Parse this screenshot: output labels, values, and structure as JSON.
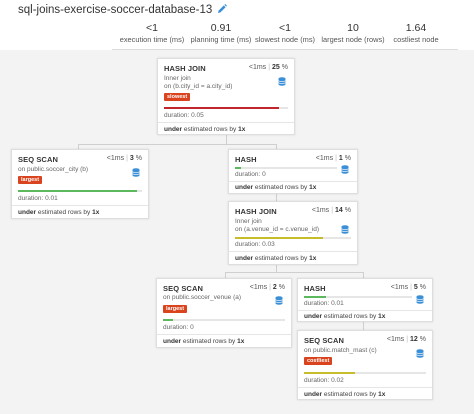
{
  "title": "sql-joins-exercise-soccer-database-13",
  "colors": {
    "red": "#c0262c",
    "green": "#5cb85c",
    "yellow": "#c7bd2b",
    "badge": "#d9431e",
    "db": "#3a8fd6"
  },
  "stats": [
    {
      "value": "<1",
      "label": "execution time (ms)"
    },
    {
      "value": "0.91",
      "label": "planning time (ms)"
    },
    {
      "value": "<1",
      "label": "slowest node (ms)"
    },
    {
      "value": "10",
      "label": "largest node (rows)"
    },
    {
      "value": "1.64",
      "label": "costliest node"
    }
  ],
  "nodes": {
    "hash_join_top": {
      "title": "HASH JOIN",
      "time": "<1ms",
      "pct": "25",
      "pct_unit": "%",
      "line1": "Inner join",
      "line2": "on (b.city_id = a.city_id)",
      "badge": "slowest",
      "duration_label": "duration:",
      "duration": "0.05",
      "bar_fraction": 0.93,
      "est_prefix": "under",
      "est_text": "estimated rows by",
      "est_factor": "1x"
    },
    "seq_scan_city": {
      "title": "SEQ SCAN",
      "time": "<1ms",
      "pct": "3",
      "pct_unit": "%",
      "line1": "on public.soccer_city (b)",
      "badge": "largest",
      "duration_label": "duration:",
      "duration": "0.01",
      "bar_fraction": 0.96,
      "est_prefix": "under",
      "est_text": "estimated rows by",
      "est_factor": "1x"
    },
    "hash_1": {
      "title": "HASH",
      "time": "<1ms",
      "pct": "1",
      "pct_unit": "%",
      "duration_label": "duration:",
      "duration": "0",
      "bar_fraction": 0.06,
      "est_prefix": "under",
      "est_text": "estimated rows by",
      "est_factor": "1x"
    },
    "hash_join_mid": {
      "title": "HASH JOIN",
      "time": "<1ms",
      "pct": "14",
      "pct_unit": "%",
      "line1": "Inner join",
      "line2": "on (a.venue_id = c.venue_id)",
      "duration_label": "duration:",
      "duration": "0.03",
      "bar_fraction": 0.76,
      "est_prefix": "under",
      "est_text": "estimated rows by",
      "est_factor": "1x"
    },
    "seq_scan_venue": {
      "title": "SEQ SCAN",
      "time": "<1ms",
      "pct": "2",
      "pct_unit": "%",
      "line1": "on public.soccer_venue (a)",
      "badge": "largest",
      "duration_label": "duration:",
      "duration": "0",
      "bar_fraction": 0.08,
      "est_prefix": "under",
      "est_text": "estimated rows by",
      "est_factor": "1x"
    },
    "hash_2": {
      "title": "HASH",
      "time": "<1ms",
      "pct": "5",
      "pct_unit": "%",
      "duration_label": "duration:",
      "duration": "0.01",
      "bar_fraction": 0.2,
      "est_prefix": "under",
      "est_text": "estimated rows by",
      "est_factor": "1x"
    },
    "seq_scan_match": {
      "title": "SEQ SCAN",
      "time": "<1ms",
      "pct": "12",
      "pct_unit": "%",
      "line1": "on public.match_mast (c)",
      "badge": "costliest",
      "duration_label": "duration:",
      "duration": "0.02",
      "bar_fraction": 0.42,
      "est_prefix": "under",
      "est_text": "estimated rows by",
      "est_factor": "1x"
    }
  }
}
